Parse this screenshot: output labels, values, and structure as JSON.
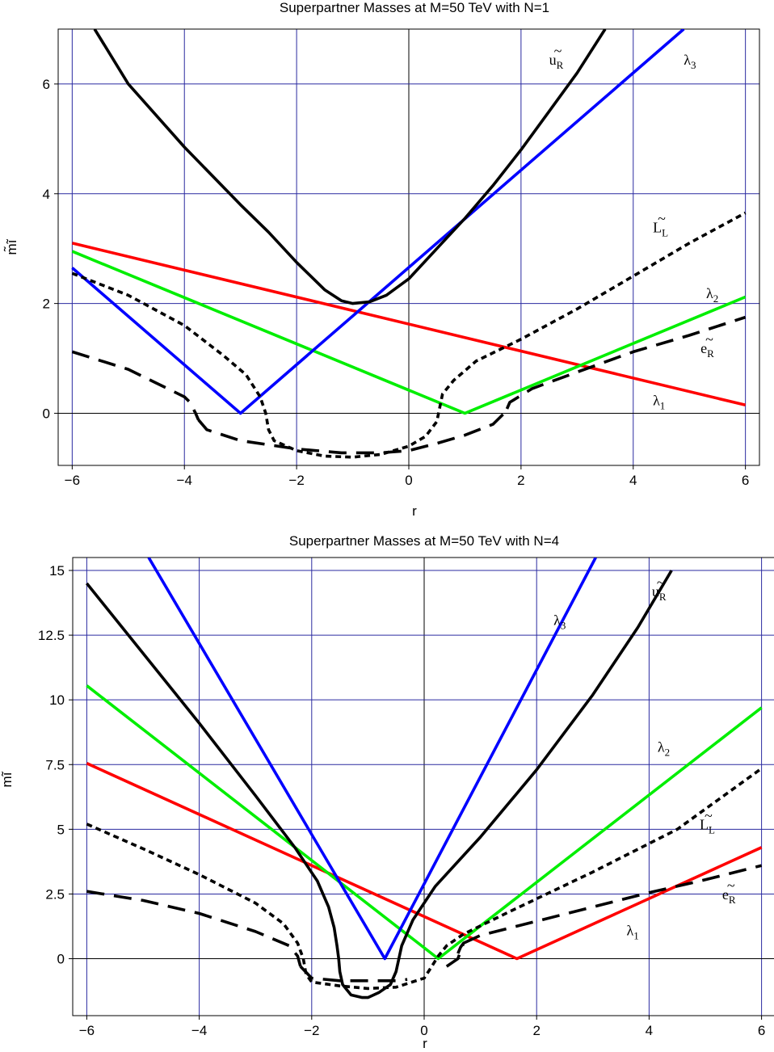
{
  "chart_data": [
    {
      "type": "line",
      "title": "Superpartner Masses at M=50 TeV with N=1",
      "xlabel": "r",
      "ylabel": "m̃ĩ",
      "xlim": [
        -6.25,
        6.25
      ],
      "ylim": [
        -0.95,
        7.0
      ],
      "xticks": [
        -6,
        -4,
        -2,
        0,
        2,
        4,
        6
      ],
      "yticks": [
        0,
        2,
        4,
        6
      ],
      "xtick_labels": [
        "−6",
        "−4",
        "−2",
        "0",
        "2",
        "4",
        "6"
      ],
      "ytick_labels": [
        "0",
        "2",
        "4",
        "6"
      ],
      "grid": true,
      "series": [
        {
          "name": "λ1",
          "color": "#ff0000",
          "style": "solid",
          "segments": [
            {
              "x": [
                -6,
                6
              ],
              "y": [
                3.1,
                0.15
              ]
            }
          ]
        },
        {
          "name": "λ2",
          "color": "#00ee00",
          "style": "solid",
          "segments": [
            {
              "x": [
                -6,
                1,
                6
              ],
              "y": [
                2.95,
                0.0,
                2.12
              ]
            }
          ]
        },
        {
          "name": "λ3",
          "color": "#0000ff",
          "style": "solid",
          "segments": [
            {
              "x": [
                -6,
                -3,
                4.9
              ],
              "y": [
                2.65,
                0.0,
                7.0
              ]
            }
          ]
        },
        {
          "name": "ũR",
          "color": "#000000",
          "style": "solid",
          "segments": [
            {
              "x": [
                -5.6,
                -5,
                -4,
                -3,
                -2.5,
                -2,
                -1.5,
                -1.2,
                -1.0,
                -0.7,
                -0.4,
                0.0,
                0.5,
                1.0,
                1.5,
                2.0,
                2.5,
                3.0,
                3.5
              ],
              "y": [
                7.0,
                6.0,
                4.85,
                3.8,
                3.3,
                2.75,
                2.25,
                2.05,
                2.0,
                2.03,
                2.15,
                2.45,
                3.0,
                3.55,
                4.15,
                4.8,
                5.5,
                6.2,
                7.0
              ]
            }
          ]
        },
        {
          "name": "L̃L",
          "color": "#000000",
          "style": "dashed-short",
          "segments": [
            {
              "x": [
                -6,
                -5,
                -4,
                -3.3,
                -2.9,
                -2.65,
                -2.55,
                -2.5,
                -2.4,
                -2.0,
                -1.5,
                -1.0,
                -0.5,
                0.0,
                0.3,
                0.5,
                0.55,
                0.6,
                0.8,
                1.2,
                2.0,
                3.0,
                4.0,
                5.0,
                6.0
              ],
              "y": [
                2.55,
                2.15,
                1.6,
                1.05,
                0.7,
                0.3,
                0.0,
                -0.3,
                -0.5,
                -0.68,
                -0.78,
                -0.8,
                -0.75,
                -0.6,
                -0.42,
                -0.15,
                0.1,
                0.35,
                0.6,
                0.95,
                1.35,
                1.9,
                2.5,
                3.1,
                3.65
              ]
            }
          ]
        },
        {
          "name": "ẽR",
          "color": "#000000",
          "style": "dashed-long",
          "segments": [
            {
              "x": [
                -6,
                -5.0,
                -4.5,
                -4.0,
                -3.9,
                -3.8,
                -3.75
              ],
              "y": [
                1.12,
                0.8,
                0.55,
                0.3,
                0.2,
                0.0,
                -0.12
              ]
            },
            {
              "x": [
                -3.75,
                -3.6,
                -3.0,
                -2.0,
                -1.2,
                -0.5,
                0.0,
                0.5,
                1.0,
                1.5,
                1.7,
                1.75
              ],
              "y": [
                -0.12,
                -0.3,
                -0.5,
                -0.65,
                -0.72,
                -0.72,
                -0.68,
                -0.55,
                -0.4,
                -0.2,
                0.0,
                0.08
              ]
            },
            {
              "x": [
                1.75,
                1.8,
                2.2,
                3.0,
                4.0,
                5.0,
                6.0
              ],
              "y": [
                0.08,
                0.2,
                0.45,
                0.75,
                1.12,
                1.42,
                1.75
              ]
            }
          ]
        }
      ],
      "annotations": [
        {
          "name": "ũR",
          "base": "u",
          "tilde": true,
          "sub": "R",
          "x": 2.5,
          "y": 6.35
        },
        {
          "name": "λ3",
          "base": "λ",
          "tilde": false,
          "sub": "3",
          "x": 4.9,
          "y": 6.35
        },
        {
          "name": "L̃L",
          "base": "L",
          "tilde": true,
          "sub": "L",
          "x": 4.35,
          "y": 3.3
        },
        {
          "name": "λ2",
          "base": "λ",
          "tilde": false,
          "sub": "2",
          "x": 5.3,
          "y": 2.1
        },
        {
          "name": "ẽR",
          "base": "e",
          "tilde": true,
          "sub": "R",
          "x": 5.2,
          "y": 1.1
        },
        {
          "name": "λ1",
          "base": "λ",
          "tilde": false,
          "sub": "1",
          "x": 4.35,
          "y": 0.15
        }
      ]
    },
    {
      "type": "line",
      "title": "Superpartner Masses at M=50 TeV with N=4",
      "xlabel": "r",
      "ylabel": "mĩ",
      "xlim": [
        -6.25,
        6.25
      ],
      "ylim": [
        -2.2,
        15.5
      ],
      "xticks": [
        -6,
        -4,
        -2,
        0,
        2,
        4,
        6
      ],
      "yticks": [
        0,
        2.5,
        5,
        7.5,
        10,
        12.5,
        15
      ],
      "xtick_labels": [
        "−6",
        "−4",
        "−2",
        "0",
        "2",
        "4",
        "6"
      ],
      "ytick_labels": [
        "0",
        "2.5",
        "5",
        "7.5",
        "10",
        "12.5",
        "15"
      ],
      "grid": true,
      "series": [
        {
          "name": "λ1",
          "color": "#ff0000",
          "style": "solid",
          "segments": [
            {
              "x": [
                -6,
                1.65,
                6
              ],
              "y": [
                7.55,
                0.0,
                4.3
              ]
            }
          ]
        },
        {
          "name": "λ2",
          "color": "#00ee00",
          "style": "solid",
          "segments": [
            {
              "x": [
                -6,
                0.25,
                6
              ],
              "y": [
                10.55,
                0.0,
                9.7
              ]
            }
          ]
        },
        {
          "name": "λ3",
          "color": "#0000ff",
          "style": "solid",
          "segments": [
            {
              "x": [
                -4.9,
                -0.7,
                3.05
              ],
              "y": [
                15.5,
                0.0,
                15.5
              ]
            }
          ]
        },
        {
          "name": "ũR",
          "color": "#000000",
          "style": "solid",
          "segments": [
            {
              "x": [
                -6,
                -5,
                -4,
                -3,
                -2.3,
                -1.9,
                -1.7,
                -1.6,
                -1.55,
                -1.52,
                -1.5,
                -1.45,
                -1.3,
                -1.1,
                -1.0,
                -0.8,
                -0.6,
                -0.5,
                -0.45,
                -0.4,
                -0.2,
                0.2,
                1.0,
                2.0,
                3.0,
                3.8,
                4.4
              ],
              "y": [
                14.5,
                11.8,
                9.1,
                6.3,
                4.3,
                3.0,
                2.0,
                1.2,
                0.5,
                0.0,
                -0.5,
                -1.0,
                -1.4,
                -1.5,
                -1.5,
                -1.3,
                -1.0,
                -0.5,
                0.0,
                0.5,
                1.5,
                2.8,
                4.7,
                7.3,
                10.2,
                12.8,
                15.0
              ]
            }
          ]
        },
        {
          "name": "L̃L",
          "color": "#000000",
          "style": "dashed-short",
          "segments": [
            {
              "x": [
                -6,
                -5,
                -4,
                -3,
                -2.5,
                -2.25,
                -2.15,
                -2.1,
                -2.0,
                -1.5,
                -1.0,
                -0.5,
                0.0,
                0.15,
                0.25,
                0.4,
                0.7,
                1.5,
                3.0,
                4.5,
                6.0
              ],
              "y": [
                5.2,
                4.25,
                3.25,
                2.15,
                1.35,
                0.6,
                0.0,
                -0.6,
                -0.9,
                -1.05,
                -1.15,
                -1.1,
                -0.75,
                -0.25,
                0.1,
                0.5,
                0.95,
                1.8,
                3.35,
                5.0,
                7.35
              ]
            }
          ]
        },
        {
          "name": "ẽR",
          "color": "#000000",
          "style": "dashed-long",
          "segments": [
            {
              "x": [
                -6,
                -5.0,
                -4.0,
                -3.0,
                -2.4,
                -2.25,
                -2.2
              ],
              "y": [
                2.6,
                2.25,
                1.75,
                1.05,
                0.5,
                0.1,
                -0.3
              ]
            },
            {
              "x": [
                -2.2,
                -2.0,
                -1.5,
                -1.0,
                -0.5,
                -0.3
              ],
              "y": [
                -0.3,
                -0.75,
                -0.85,
                -0.85,
                -0.85,
                -0.8
              ]
            },
            {
              "x": [
                0.4,
                0.5,
                0.6,
                0.65,
                0.7,
                0.65,
                0.6
              ],
              "y": [
                -0.3,
                -0.15,
                0.0,
                0.3,
                0.6,
                0.45,
                0.2
              ]
            },
            {
              "x": [
                0.7,
                1.0,
                2.0,
                3.0,
                4.0,
                5.0,
                6.0
              ],
              "y": [
                0.6,
                0.9,
                1.45,
                2.0,
                2.55,
                3.05,
                3.6
              ]
            }
          ]
        }
      ],
      "annotations": [
        {
          "name": "ũR",
          "base": "u",
          "tilde": true,
          "sub": "R",
          "x": 4.05,
          "y": 14.0
        },
        {
          "name": "λ3",
          "base": "λ",
          "tilde": false,
          "sub": "3",
          "x": 2.3,
          "y": 12.9
        },
        {
          "name": "λ2",
          "base": "λ",
          "tilde": false,
          "sub": "2",
          "x": 4.15,
          "y": 8.0
        },
        {
          "name": "L̃L",
          "base": "L",
          "tilde": true,
          "sub": "L",
          "x": 4.9,
          "y": 5.0
        },
        {
          "name": "ẽR",
          "base": "e",
          "tilde": true,
          "sub": "R",
          "x": 5.3,
          "y": 2.3
        },
        {
          "name": "λ1",
          "base": "λ",
          "tilde": false,
          "sub": "1",
          "x": 3.6,
          "y": 0.9
        }
      ]
    }
  ]
}
